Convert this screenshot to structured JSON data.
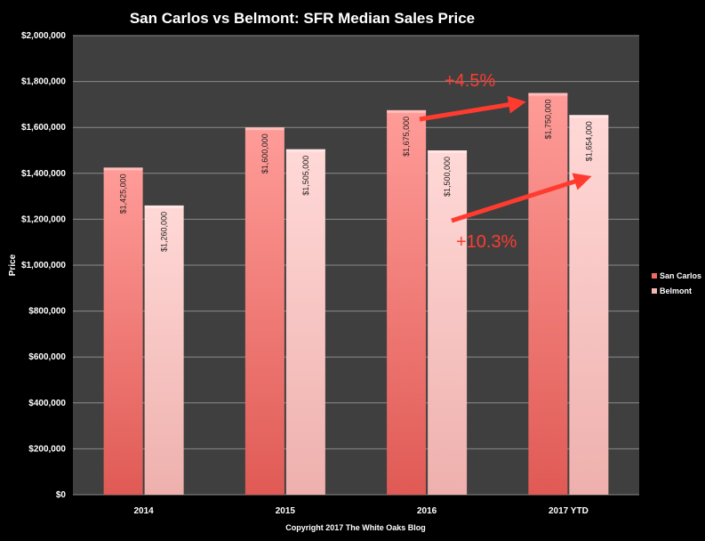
{
  "chart_data": {
    "type": "bar",
    "title": "San Carlos vs Belmont:  SFR Median Sales Price",
    "xlabel": "",
    "ylabel": "Price",
    "categories": [
      "2014",
      "2015",
      "2016",
      "2017 YTD"
    ],
    "series": [
      {
        "name": "San Carlos",
        "values": [
          1425000,
          1600000,
          1675000,
          1750000
        ],
        "labels": [
          "$1,425,000",
          "$1,600,000",
          "$1,675,000",
          "$1,750,000"
        ],
        "color": "#f06a66"
      },
      {
        "name": "Belmont",
        "values": [
          1260000,
          1505000,
          1500000,
          1654000
        ],
        "labels": [
          "$1,260,000",
          "$1,505,000",
          "$1,500,000",
          "$1,654,000"
        ],
        "color": "#f4b6b3"
      }
    ],
    "ylim": [
      0,
      2000000
    ],
    "yticks": [
      0,
      200000,
      400000,
      600000,
      800000,
      1000000,
      1200000,
      1400000,
      1600000,
      1800000,
      2000000
    ],
    "ytick_labels": [
      "$0",
      "$200,000",
      "$400,000",
      "$600,000",
      "$800,000",
      "$1,000,000",
      "$1,200,000",
      "$1,400,000",
      "$1,600,000",
      "$1,800,000",
      "$2,000,000"
    ],
    "grid": true,
    "legend_position": "right",
    "annotations": [
      {
        "text": "+4.5%",
        "color": "#ff3b30"
      },
      {
        "text": "+10.3%",
        "color": "#ff3b30"
      }
    ]
  },
  "footer": "Copyright 2017 The White Oaks Blog",
  "colors": {
    "background": "#000000",
    "plot_area": "#3f3f3f",
    "gridline": "#8a8a8a",
    "text": "#ffffff",
    "annotation": "#ff3b30"
  }
}
